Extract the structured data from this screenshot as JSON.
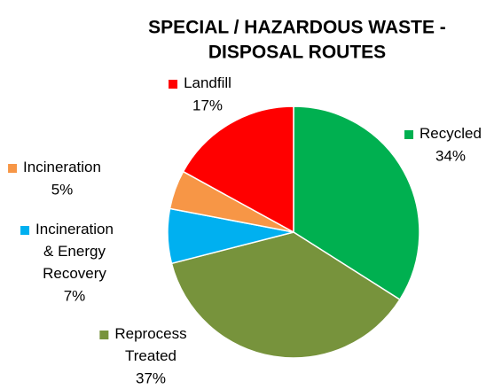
{
  "chart_data": {
    "type": "pie",
    "title": [
      "SPECIAL / HAZARDOUS  WASTE -",
      "DISPOSAL ROUTES"
    ],
    "categories": [
      "Recycled",
      "Reprocess Treated",
      "Incineration & Energy Recovery",
      "Incineration",
      "Landfill"
    ],
    "values": [
      34,
      37,
      7,
      5,
      17
    ],
    "value_labels": [
      "34%",
      "37%",
      "7%",
      "5%",
      "17%"
    ],
    "colors": [
      "#00b050",
      "#77933c",
      "#00b0f0",
      "#f79646",
      "#ff0000"
    ]
  }
}
